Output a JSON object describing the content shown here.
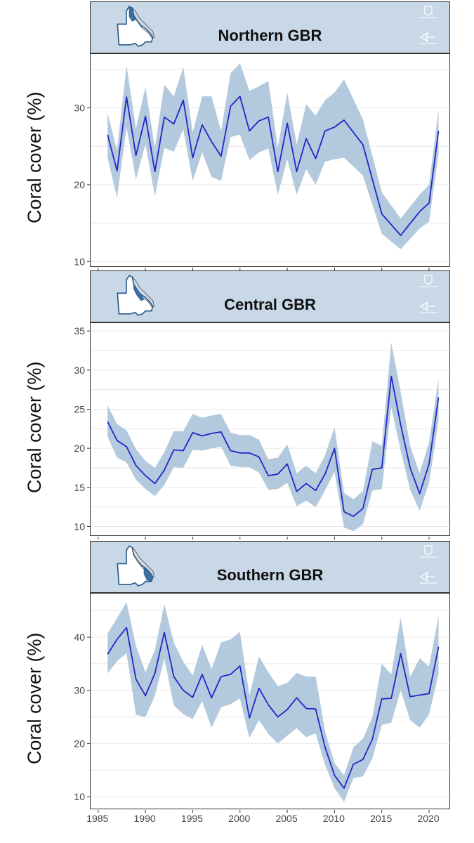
{
  "ylabel": "Coral cover (%)",
  "colors": {
    "line": "#2525c8",
    "band": "#b3c9dd",
    "header_bg": "#c9d8e6",
    "map_fill": "#ffffff",
    "map_stroke": "#2a5b8c",
    "map_highlight": "#3d6fa3",
    "grid": "#e6e6e6"
  },
  "chart_data": [
    {
      "type": "line",
      "title": "Northern GBR",
      "ylabel": "Coral cover (%)",
      "ylim": [
        9.2,
        37
      ],
      "yticks": [
        10,
        20,
        30
      ],
      "xlim": [
        1984.2,
        2022.3
      ],
      "xticks": [
        1985,
        1990,
        1995,
        2000,
        2005,
        2010,
        2015,
        2020
      ],
      "grid": true,
      "series": [
        {
          "x": [
            1986,
            1987,
            1988,
            1989,
            1990,
            1991,
            1992,
            1993,
            1994,
            1995,
            1996,
            1997,
            1998,
            1999,
            2000,
            2001,
            2002,
            2003,
            2004,
            2005,
            2006,
            2007,
            2008,
            2009,
            2010,
            2011,
            2013,
            2015,
            2017,
            2019,
            2020,
            2021
          ],
          "values": [
            26.5,
            21.8,
            31.4,
            23.8,
            28.9,
            21.7,
            28.8,
            27.9,
            31.0,
            23.5,
            27.8,
            25.6,
            23.7,
            30.2,
            31.5,
            27.0,
            28.3,
            28.8,
            21.7,
            28.0,
            21.7,
            26.0,
            23.4,
            27.0,
            27.5,
            28.4,
            25.2,
            16.2,
            13.4,
            16.5,
            17.6,
            27.0
          ],
          "lower": [
            23.5,
            18.3,
            27.5,
            20.7,
            25.3,
            18.5,
            24.8,
            24.3,
            27.2,
            20.5,
            24.2,
            21.0,
            20.5,
            26.2,
            26.5,
            23.2,
            24.2,
            24.7,
            18.7,
            23.3,
            18.7,
            22.0,
            20.0,
            23.0,
            23.3,
            23.5,
            21.2,
            13.6,
            11.6,
            14.3,
            15.2,
            24.0
          ],
          "upper": [
            29.3,
            24.5,
            35.5,
            27.3,
            32.7,
            24.8,
            33.0,
            31.5,
            35.3,
            26.8,
            31.5,
            31.5,
            27.0,
            34.5,
            35.8,
            32.2,
            32.8,
            33.5,
            24.8,
            32.0,
            25.2,
            30.5,
            29.0,
            31.0,
            32.0,
            33.7,
            28.5,
            19.0,
            15.6,
            18.7,
            20.0,
            29.7
          ]
        }
      ]
    },
    {
      "type": "line",
      "title": "Central GBR",
      "ylabel": "Coral cover (%)",
      "ylim": [
        8.7,
        36
      ],
      "yticks": [
        10,
        15,
        20,
        25,
        30,
        35
      ],
      "xlim": [
        1984.2,
        2022.3
      ],
      "xticks": [
        1985,
        1990,
        1995,
        2000,
        2005,
        2010,
        2015,
        2020
      ],
      "grid": true,
      "series": [
        {
          "x": [
            1986,
            1987,
            1988,
            1989,
            1990,
            1991,
            1992,
            1993,
            1994,
            1995,
            1996,
            1997,
            1998,
            1999,
            2000,
            2001,
            2002,
            2003,
            2004,
            2005,
            2006,
            2007,
            2008,
            2009,
            2010,
            2011,
            2012,
            2013,
            2014,
            2015,
            2016,
            2017,
            2018,
            2019,
            2020,
            2021
          ],
          "values": [
            23.4,
            21.0,
            20.2,
            17.8,
            16.5,
            15.5,
            17.2,
            19.8,
            19.7,
            22.0,
            21.6,
            21.9,
            22.1,
            19.7,
            19.4,
            19.4,
            18.9,
            16.5,
            16.7,
            18.0,
            14.5,
            15.5,
            14.6,
            16.7,
            20.0,
            11.9,
            11.3,
            12.3,
            17.3,
            17.5,
            29.2,
            23.0,
            17.5,
            14.2,
            18.0,
            26.5
          ],
          "lower": [
            21.5,
            18.8,
            18.2,
            16.0,
            14.8,
            13.9,
            15.3,
            17.6,
            17.5,
            19.8,
            19.7,
            20.0,
            20.2,
            17.8,
            17.6,
            17.6,
            16.9,
            14.7,
            14.8,
            15.6,
            12.6,
            13.3,
            12.5,
            14.6,
            17.0,
            9.9,
            9.4,
            10.3,
            14.6,
            14.8,
            25.3,
            19.7,
            14.7,
            12.0,
            15.6,
            23.5
          ],
          "upper": [
            25.5,
            23.1,
            22.3,
            19.9,
            18.4,
            17.5,
            19.5,
            22.2,
            22.2,
            24.4,
            23.9,
            24.2,
            24.4,
            22.0,
            21.7,
            21.7,
            21.1,
            18.6,
            18.8,
            20.5,
            16.8,
            17.8,
            16.8,
            19.1,
            22.7,
            14.3,
            13.5,
            14.5,
            20.9,
            20.3,
            33.5,
            27.2,
            20.3,
            16.8,
            20.8,
            28.9
          ]
        }
      ]
    },
    {
      "type": "line",
      "title": "Southern GBR",
      "ylabel": "Coral cover (%)",
      "ylim": [
        7.5,
        48.2
      ],
      "yticks": [
        10,
        20,
        30,
        40
      ],
      "xlim": [
        1984.2,
        2022.3
      ],
      "xticks": [
        1985,
        1990,
        1995,
        2000,
        2005,
        2010,
        2015,
        2020
      ],
      "grid": true,
      "series": [
        {
          "x": [
            1986,
            1987,
            1988,
            1989,
            1990,
            1991,
            1992,
            1993,
            1994,
            1995,
            1996,
            1997,
            1998,
            1999,
            2000,
            2001,
            2002,
            2003,
            2004,
            2005,
            2006,
            2007,
            2008,
            2009,
            2010,
            2011,
            2012,
            2013,
            2014,
            2015,
            2016,
            2017,
            2018,
            2019,
            2020,
            2021
          ],
          "values": [
            36.8,
            39.6,
            41.8,
            32.1,
            29.0,
            33.2,
            40.9,
            32.6,
            30.0,
            28.7,
            33.0,
            28.6,
            32.6,
            33.0,
            34.6,
            24.8,
            30.4,
            27.3,
            25.0,
            26.4,
            28.6,
            26.6,
            26.5,
            19.3,
            14.0,
            11.6,
            16.1,
            17.0,
            20.8,
            28.4,
            28.5,
            36.9,
            28.8,
            29.1,
            29.4,
            38.2
          ],
          "lower": [
            33.2,
            35.5,
            37.0,
            25.4,
            25.0,
            29.0,
            36.0,
            27.2,
            25.5,
            24.6,
            28.0,
            23.0,
            26.8,
            27.4,
            28.5,
            21.0,
            24.4,
            21.8,
            20.0,
            21.5,
            22.9,
            21.2,
            21.9,
            16.0,
            11.6,
            9.0,
            13.5,
            13.8,
            17.2,
            23.5,
            23.9,
            30.0,
            24.4,
            23.0,
            25.5,
            33.0
          ],
          "upper": [
            40.7,
            43.6,
            46.6,
            38.4,
            33.4,
            37.6,
            46.2,
            39.0,
            35.4,
            32.8,
            38.6,
            34.0,
            39.0,
            39.6,
            41.0,
            29.0,
            36.4,
            33.4,
            30.8,
            31.4,
            33.3,
            32.6,
            32.6,
            22.3,
            16.3,
            14.0,
            19.3,
            20.9,
            24.9,
            35.0,
            33.0,
            43.7,
            32.5,
            36.0,
            34.5,
            44.0
          ]
        }
      ]
    }
  ]
}
